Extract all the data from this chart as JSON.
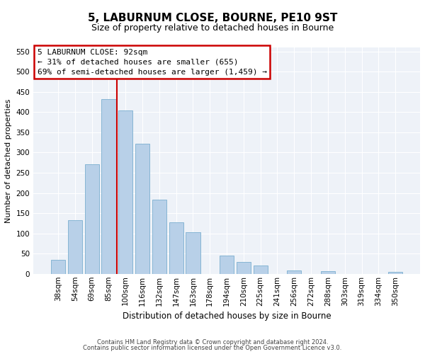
{
  "title": "5, LABURNUM CLOSE, BOURNE, PE10 9ST",
  "subtitle": "Size of property relative to detached houses in Bourne",
  "xlabel": "Distribution of detached houses by size in Bourne",
  "ylabel": "Number of detached properties",
  "categories": [
    "38sqm",
    "54sqm",
    "69sqm",
    "85sqm",
    "100sqm",
    "116sqm",
    "132sqm",
    "147sqm",
    "163sqm",
    "178sqm",
    "194sqm",
    "210sqm",
    "225sqm",
    "241sqm",
    "256sqm",
    "272sqm",
    "288sqm",
    "303sqm",
    "319sqm",
    "334sqm",
    "350sqm"
  ],
  "values": [
    35,
    133,
    271,
    432,
    404,
    322,
    184,
    128,
    103,
    0,
    46,
    30,
    20,
    0,
    8,
    0,
    6,
    0,
    0,
    0,
    5
  ],
  "bar_color": "#b8d0e8",
  "bar_edge_color": "#7aaecf",
  "vline_color": "#cc0000",
  "vline_x_index": 3.5,
  "annotation_title": "5 LABURNUM CLOSE: 92sqm",
  "annotation_line1": "← 31% of detached houses are smaller (655)",
  "annotation_line2": "69% of semi-detached houses are larger (1,459) →",
  "annotation_box_edgecolor": "#cc0000",
  "ylim": [
    0,
    560
  ],
  "yticks": [
    0,
    50,
    100,
    150,
    200,
    250,
    300,
    350,
    400,
    450,
    500,
    550
  ],
  "footer1": "Contains HM Land Registry data © Crown copyright and database right 2024.",
  "footer2": "Contains public sector information licensed under the Open Government Licence v3.0.",
  "bg_color": "#eef2f8",
  "grid_color": "#ffffff",
  "title_fontsize": 11,
  "subtitle_fontsize": 9,
  "ylabel_fontsize": 8,
  "xlabel_fontsize": 8.5,
  "tick_fontsize": 7.5,
  "footer_fontsize": 6
}
